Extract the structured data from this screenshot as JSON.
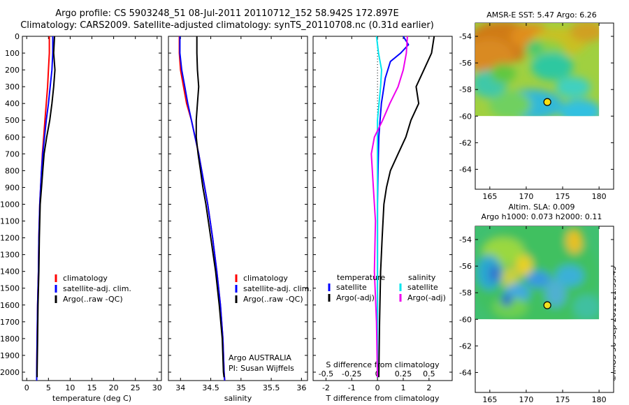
{
  "figure": {
    "title_line1": "Argo profile: CS 5903248_51 08-Jul-2011 20110712_152 58.942S 172.897E",
    "title_line2": "Climatology: CARS2009. Satellite-adjusted climatology: synTS_20110708.nc (0.31d earlier)",
    "sst_title": "AMSR-E SST: 5.47 Argo: 6.26",
    "sla_title_line1": "Altim. SLA: 0.009",
    "sla_title_line2": "Argo h1000: 0.073 h2000: 0.11",
    "credit": "©IMOS 30-Sep-2011 21:35:45",
    "argo_note_line1": "Argo AUSTRALIA",
    "argo_note_line2": "PI: Susan Wijffels",
    "colors": {
      "climatology": "#ff0000",
      "satellite": "#0000ff",
      "argo": "#000000",
      "sal_satellite": "#00e5ee",
      "sal_argo": "#ee00ee"
    }
  },
  "chart_data": [
    {
      "type": "line",
      "name": "temperature",
      "xlabel": "temperature (deg C)",
      "ylabel": "",
      "xlim": [
        -1,
        31
      ],
      "ylim": [
        2050,
        0
      ],
      "xticks": [
        0,
        5,
        10,
        15,
        20,
        25,
        30
      ],
      "yticks": [
        0,
        100,
        200,
        300,
        400,
        500,
        600,
        700,
        800,
        900,
        1000,
        1100,
        1200,
        1300,
        1400,
        1500,
        1600,
        1700,
        1800,
        1900,
        2000
      ],
      "legend": [
        "climatology",
        "satellite-adj. clim.",
        "Argo(..raw -QC)"
      ],
      "series": [
        {
          "name": "climatology",
          "x": [
            5.2,
            5.2,
            5.0,
            4.8,
            4.5,
            4.2,
            3.9,
            3.6,
            3.4,
            3.2,
            3.0,
            2.8,
            2.7,
            2.5,
            2.4,
            2.3,
            2.3
          ],
          "y": [
            0,
            100,
            200,
            300,
            400,
            500,
            600,
            700,
            800,
            900,
            1000,
            1200,
            1400,
            1600,
            1800,
            2000,
            2050
          ]
        },
        {
          "name": "satellite-adj. clim.",
          "x": [
            6.0,
            6.0,
            5.8,
            5.4,
            5.0,
            4.5,
            4.1,
            3.7,
            3.4,
            3.2,
            3.0,
            2.8,
            2.7,
            2.5,
            2.4,
            2.3,
            2.3
          ],
          "y": [
            0,
            100,
            200,
            300,
            400,
            500,
            600,
            700,
            800,
            900,
            1000,
            1200,
            1400,
            1600,
            1800,
            2000,
            2050
          ]
        },
        {
          "name": "Argo(..raw -QC)",
          "x": [
            6.4,
            6.2,
            6.5,
            6.2,
            5.8,
            5.3,
            4.6,
            4.0,
            3.7,
            3.4,
            3.1,
            2.9,
            2.8,
            2.6,
            2.5,
            2.4,
            2.4
          ],
          "y": [
            0,
            100,
            200,
            300,
            400,
            500,
            600,
            700,
            800,
            900,
            1000,
            1200,
            1400,
            1600,
            1800,
            2000,
            2030
          ]
        }
      ]
    },
    {
      "type": "line",
      "name": "salinity",
      "xlabel": "salinity",
      "ylabel": "",
      "xlim": [
        33.8,
        36.1
      ],
      "ylim": [
        2050,
        0
      ],
      "xticks": [
        34,
        34.5,
        35,
        35.5,
        36
      ],
      "legend": [
        "climatology",
        "satellite-adj. clim.",
        "Argo(..raw -QC)"
      ],
      "series": [
        {
          "name": "climatology",
          "x": [
            33.98,
            33.98,
            34.0,
            34.05,
            34.1,
            34.18,
            34.24,
            34.3,
            34.35,
            34.4,
            34.45,
            34.53,
            34.6,
            34.66,
            34.7,
            34.72,
            34.73
          ],
          "y": [
            0,
            100,
            200,
            300,
            400,
            500,
            600,
            700,
            800,
            900,
            1000,
            1200,
            1400,
            1600,
            1800,
            2000,
            2050
          ]
        },
        {
          "name": "satellite-adj. clim.",
          "x": [
            33.99,
            33.99,
            34.02,
            34.07,
            34.12,
            34.18,
            34.24,
            34.3,
            34.35,
            34.4,
            34.45,
            34.53,
            34.6,
            34.66,
            34.7,
            34.72,
            34.73
          ],
          "y": [
            0,
            100,
            200,
            300,
            400,
            500,
            600,
            700,
            800,
            900,
            1000,
            1200,
            1400,
            1600,
            1800,
            2000,
            2050
          ]
        },
        {
          "name": "Argo(..raw -QC)",
          "x": [
            34.27,
            34.27,
            34.28,
            34.3,
            34.28,
            34.26,
            34.26,
            34.29,
            34.33,
            34.37,
            34.42,
            34.5,
            34.58,
            34.64,
            34.69,
            34.71,
            34.72
          ],
          "y": [
            0,
            100,
            200,
            300,
            400,
            500,
            600,
            700,
            800,
            900,
            1000,
            1200,
            1400,
            1600,
            1800,
            2000,
            2030
          ]
        }
      ]
    },
    {
      "type": "line",
      "name": "difference",
      "xlabel": "T difference from climatology",
      "xlabel_top": "S difference from climatology",
      "xlim": [
        -2.5,
        2.9
      ],
      "ylim": [
        2050,
        0
      ],
      "xticks": [
        -2,
        -1,
        0,
        1,
        2
      ],
      "top_ticks": [
        -0.5,
        -0.25,
        0,
        0.25,
        0.5
      ],
      "top_tick_labels": [
        "-0.5",
        "-0.25",
        "0",
        "0.25",
        "0.5"
      ],
      "legend_temperature": "temperature",
      "legend_salinity": "salinity",
      "legend": [
        "satellite",
        "Argo(-adj)",
        "satellite",
        "Argo(-adj)"
      ],
      "series": [
        {
          "name": "temperature satellite",
          "x": [
            1.0,
            1.2,
            0.9,
            0.5,
            0.3,
            0.15,
            0.1,
            0.05,
            0.02,
            0.0,
            0.0,
            0.0,
            0.0,
            0.0,
            0.0
          ],
          "y": [
            0,
            50,
            100,
            150,
            250,
            400,
            500,
            600,
            800,
            1000,
            1200,
            1400,
            1600,
            1800,
            2030
          ]
        },
        {
          "name": "temperature Argo(-adj)",
          "x": [
            2.2,
            2.1,
            1.8,
            1.5,
            1.6,
            1.3,
            1.1,
            0.8,
            0.5,
            0.35,
            0.25,
            0.18,
            0.12,
            0.08,
            0.05
          ],
          "y": [
            0,
            100,
            200,
            300,
            400,
            500,
            600,
            700,
            800,
            900,
            1000,
            1200,
            1400,
            1700,
            2030
          ]
        },
        {
          "name": "salinity satellite",
          "x": [
            -0.01,
            0.01,
            0.04,
            0.03,
            0.0,
            0.0,
            0.0,
            0.0,
            0.0,
            0.0
          ],
          "y": [
            0,
            100,
            200,
            300,
            500,
            800,
            1100,
            1400,
            1700,
            2030
          ]
        },
        {
          "name": "salinity Argo(-adj)",
          "x": [
            0.29,
            0.28,
            0.25,
            0.2,
            0.12,
            0.05,
            -0.03,
            -0.06,
            -0.04,
            -0.02,
            -0.03,
            -0.01,
            0.0
          ],
          "y": [
            0,
            100,
            200,
            300,
            400,
            500,
            600,
            700,
            900,
            1100,
            1400,
            1700,
            2030
          ]
        }
      ]
    },
    {
      "type": "heatmap",
      "name": "sst-map",
      "title": "AMSR-E SST: 5.47 Argo: 6.26",
      "xlim": [
        163,
        182
      ],
      "ylim": [
        -65.5,
        -53
      ],
      "xticks": [
        165,
        170,
        175,
        180
      ],
      "xtick_labels": [
        "165",
        "170",
        "175",
        "180"
      ],
      "yticks": [
        -54,
        -56,
        -58,
        -60,
        -62,
        -64
      ],
      "ytick_labels": [
        "-54",
        "-56",
        "-58",
        "-60",
        "-62",
        "-64"
      ],
      "data_extent": {
        "lon": [
          163,
          180
        ],
        "lat": [
          -60,
          -53
        ]
      },
      "argo_position": {
        "lon": 172.897,
        "lat": -58.942
      }
    },
    {
      "type": "heatmap",
      "name": "sla-map",
      "title": "Altim. SLA: 0.009",
      "xlim": [
        163,
        182
      ],
      "ylim": [
        -65.5,
        -53
      ],
      "xticks": [
        165,
        170,
        175,
        180
      ],
      "xtick_labels": [
        "165",
        "170",
        "175",
        "180"
      ],
      "yticks": [
        -54,
        -56,
        -58,
        -60,
        -62,
        -64
      ],
      "ytick_labels": [
        "-54",
        "-56",
        "-58",
        "-60",
        "-62",
        "-64"
      ],
      "data_extent": {
        "lon": [
          163,
          180
        ],
        "lat": [
          -60,
          -53
        ]
      },
      "argo_position": {
        "lon": 172.897,
        "lat": -58.942
      }
    }
  ]
}
